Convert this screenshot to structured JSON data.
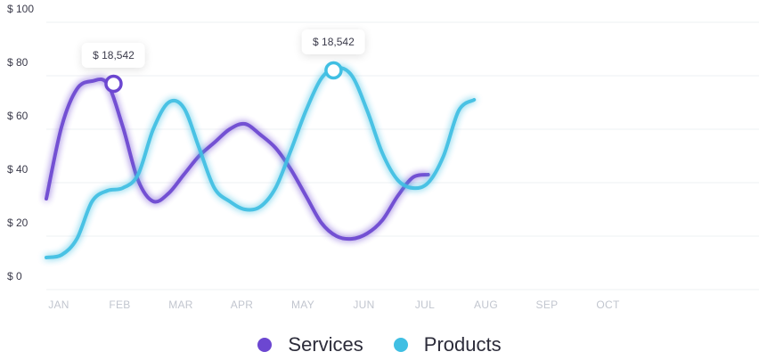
{
  "chart_data": {
    "type": "line",
    "categories": [
      "JAN",
      "FEB",
      "MAR",
      "APR",
      "MAY",
      "JUN",
      "JUL",
      "AUG",
      "SEP",
      "OCT"
    ],
    "y_tick_labels": [
      "$ 0",
      "$ 20",
      "$ 40",
      "$ 60",
      "$ 80",
      "$ 100"
    ],
    "ylim": [
      0,
      100
    ],
    "grid": true,
    "legend_position": "bottom-center",
    "series": [
      {
        "name": "Services",
        "color": "#6c47d1",
        "points": [
          [
            0,
            29
          ],
          [
            0.5,
            56
          ],
          [
            1.0,
            70
          ],
          [
            1.5,
            73
          ],
          [
            2.0,
            72
          ],
          [
            2.5,
            56
          ],
          [
            3.0,
            36
          ],
          [
            3.5,
            28
          ],
          [
            4.0,
            31
          ],
          [
            4.5,
            38
          ],
          [
            5.0,
            45
          ],
          [
            5.5,
            50
          ],
          [
            6.0,
            55
          ],
          [
            6.5,
            57
          ],
          [
            7.0,
            53
          ],
          [
            7.5,
            48
          ],
          [
            8.0,
            40
          ],
          [
            8.5,
            30
          ],
          [
            9.0,
            20
          ],
          [
            9.5,
            15
          ],
          [
            10.0,
            14
          ],
          [
            10.5,
            16
          ],
          [
            11.0,
            21
          ],
          [
            11.5,
            30
          ],
          [
            12.0,
            37
          ],
          [
            12.5,
            38
          ]
        ]
      },
      {
        "name": "Products",
        "color": "#40bfe3",
        "points": [
          [
            0,
            7
          ],
          [
            0.5,
            8
          ],
          [
            1.0,
            14
          ],
          [
            1.5,
            28
          ],
          [
            2.0,
            32
          ],
          [
            2.5,
            33
          ],
          [
            3.0,
            38
          ],
          [
            3.5,
            55
          ],
          [
            4.0,
            65
          ],
          [
            4.5,
            63
          ],
          [
            5.0,
            48
          ],
          [
            5.5,
            33
          ],
          [
            6.0,
            28
          ],
          [
            6.5,
            25
          ],
          [
            7.0,
            26
          ],
          [
            7.5,
            33
          ],
          [
            8.0,
            47
          ],
          [
            8.5,
            62
          ],
          [
            9.0,
            74
          ],
          [
            9.5,
            78
          ],
          [
            10.0,
            75
          ],
          [
            10.5,
            62
          ],
          [
            11.0,
            46
          ],
          [
            11.5,
            36
          ],
          [
            12.0,
            33
          ],
          [
            12.5,
            35
          ],
          [
            13.0,
            45
          ],
          [
            13.5,
            62
          ],
          [
            14.0,
            66
          ]
        ]
      }
    ],
    "annotations": [
      {
        "series": "Services",
        "x": 2.2,
        "y": 72,
        "label": "$ 18,542"
      },
      {
        "series": "Products",
        "x": 9.4,
        "y": 77,
        "label": "$ 18,542"
      }
    ]
  }
}
